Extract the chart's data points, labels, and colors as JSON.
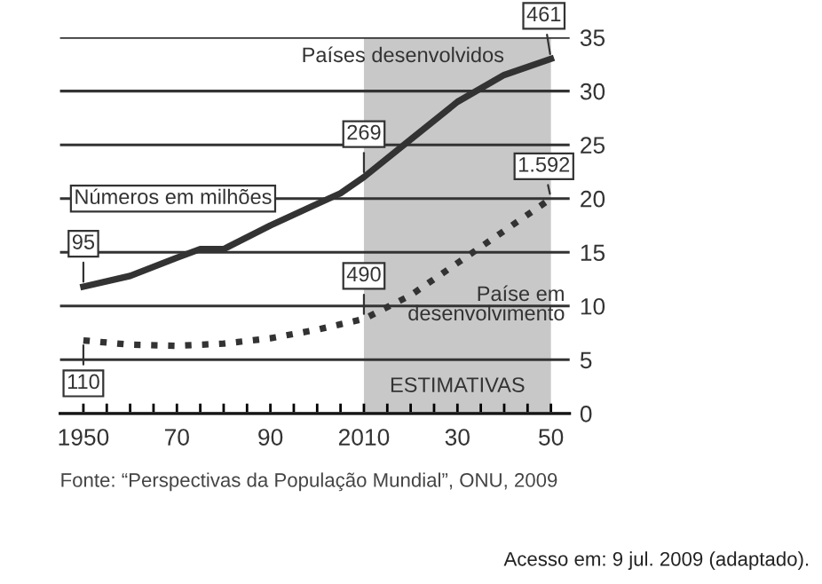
{
  "chart_data": {
    "type": "line",
    "x": [
      1950,
      1960,
      1970,
      1975,
      1980,
      1990,
      2000,
      2005,
      2010,
      2020,
      2030,
      2040,
      2050
    ],
    "series": [
      {
        "name": "Países desenvolvidos",
        "color": "#333333",
        "line_style": "solid",
        "values": [
          11.8,
          12.8,
          14.5,
          15.3,
          15.3,
          17.5,
          19.5,
          20.5,
          22,
          25.5,
          29,
          31.5,
          33
        ]
      },
      {
        "name": "Paíse em\ndesenvolvimento",
        "color": "#333333",
        "line_style": "dotted",
        "values": [
          6.8,
          6.4,
          6.3,
          6.4,
          6.5,
          7.0,
          7.8,
          8.3,
          8.8,
          11,
          14,
          17,
          20
        ]
      }
    ],
    "xlim": [
      1945,
      2054
    ],
    "ylim": [
      0,
      35
    ],
    "xticks": [
      {
        "value": 1950,
        "label": "1950"
      },
      {
        "value": 1955,
        "label": null
      },
      {
        "value": 1960,
        "label": null
      },
      {
        "value": 1965,
        "label": null
      },
      {
        "value": 1970,
        "label": "70"
      },
      {
        "value": 1975,
        "label": null
      },
      {
        "value": 1980,
        "label": null
      },
      {
        "value": 1985,
        "label": null
      },
      {
        "value": 1990,
        "label": "90"
      },
      {
        "value": 1995,
        "label": null
      },
      {
        "value": 2000,
        "label": null
      },
      {
        "value": 2005,
        "label": null
      },
      {
        "value": 2010,
        "label": "2010"
      },
      {
        "value": 2015,
        "label": null
      },
      {
        "value": 2020,
        "label": null
      },
      {
        "value": 2025,
        "label": null
      },
      {
        "value": 2030,
        "label": "30"
      },
      {
        "value": 2035,
        "label": null
      },
      {
        "value": 2040,
        "label": null
      },
      {
        "value": 2045,
        "label": null
      },
      {
        "value": 2050,
        "label": "50"
      }
    ],
    "yticks": [
      0,
      5,
      10,
      15,
      20,
      25,
      30,
      35
    ],
    "grid": "y",
    "bands": [
      {
        "axis": "x",
        "from": 2010,
        "to": 2050,
        "label": "ESTIMATIVAS",
        "color": "#c8c8c8"
      }
    ],
    "annotations": [
      {
        "text": "95",
        "x": 1950,
        "y": 11.8
      },
      {
        "text": "269",
        "x": 2010,
        "y": 22
      },
      {
        "text": "461",
        "x": 2050,
        "y": 33
      },
      {
        "text": "1.592",
        "x": 2050,
        "y": 20
      },
      {
        "text": "490",
        "x": 2010,
        "y": 8.8
      },
      {
        "text": "110",
        "x": 1950,
        "y": 6.8
      },
      "Números em milhões",
      "Fonte: “Perspectivas da População Mundial”, ONU, 2009",
      "Acesso em: 9 jul. 2009 (adaptado)."
    ]
  }
}
